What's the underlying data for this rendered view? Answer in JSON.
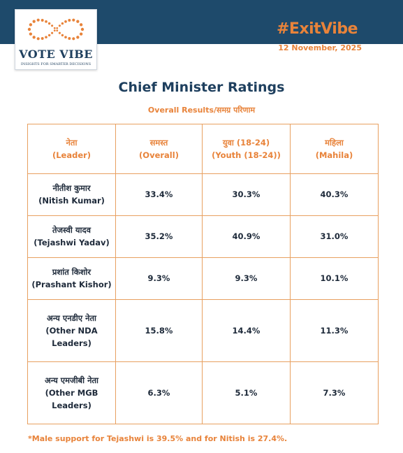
{
  "header": {
    "brand": "VOTE VIBE",
    "tagline": "INSIGHTS FOR SMARTER DECISIONS",
    "hashtag": "#ExitVibe",
    "date": "12 November, 2025"
  },
  "title": "Chief Minister Ratings",
  "subtitle": "Overall Results/समग्र परिणाम",
  "table": {
    "columns": [
      {
        "line1": "नेता",
        "line2": "(Leader)"
      },
      {
        "line1": "समस्त",
        "line2": "(Overall)"
      },
      {
        "line1": "युवा (18-24)",
        "line2": "(Youth (18-24))"
      },
      {
        "line1": "महिला",
        "line2": "(Mahila)"
      }
    ],
    "rows": [
      {
        "leader_hi": "नीतीश कुमार",
        "leader_en": "(Nitish Kumar)",
        "overall": "33.4%",
        "youth": "30.3%",
        "mahila": "40.3%"
      },
      {
        "leader_hi": "तेजस्वी यादव",
        "leader_en": "(Tejashwi Yadav)",
        "overall": "35.2%",
        "youth": "40.9%",
        "mahila": "31.0%"
      },
      {
        "leader_hi": "प्रशांत किशोर",
        "leader_en": "(Prashant Kishor)",
        "overall": "9.3%",
        "youth": "9.3%",
        "mahila": "10.1%"
      },
      {
        "leader_hi": "अन्य एनडीए नेता",
        "leader_en": "(Other NDA",
        "leader_en2": "Leaders)",
        "overall": "15.8%",
        "youth": "14.4%",
        "mahila": "11.3%"
      },
      {
        "leader_hi": "अन्य एमजीबी नेता",
        "leader_en": "(Other MGB",
        "leader_en2": "Leaders)",
        "overall": "6.3%",
        "youth": "5.1%",
        "mahila": "7.3%"
      }
    ]
  },
  "footnote": "*Male support for Tejashwi is 39.5% and for Nitish is 27.4%.",
  "colors": {
    "navy": "#1e4a6b",
    "orange": "#e8833a",
    "title_navy": "#1e3f5e"
  },
  "icons": {
    "logo": "infinity-of-dots-icon"
  }
}
